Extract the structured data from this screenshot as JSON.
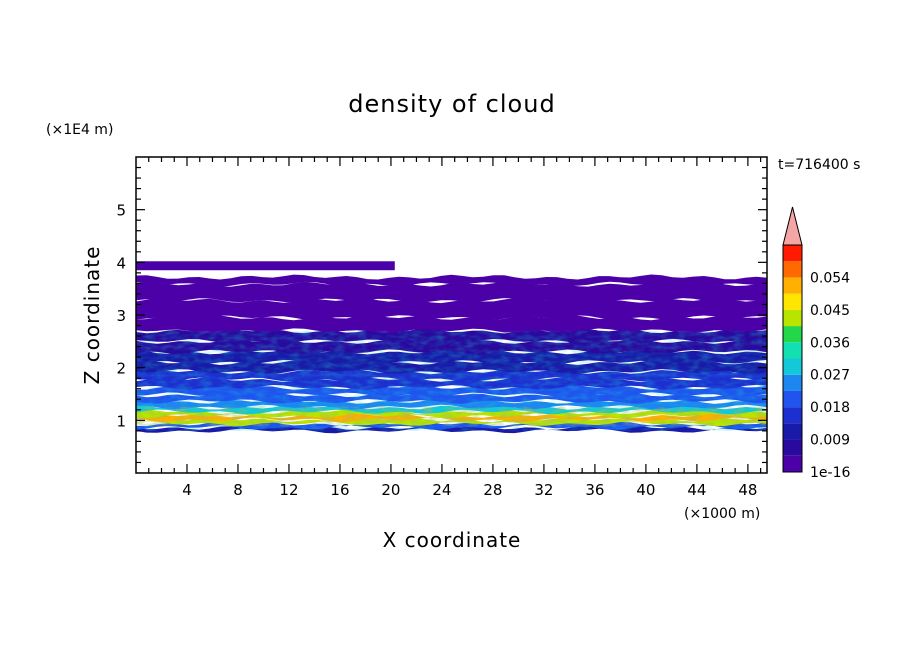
{
  "chart_data": {
    "type": "heatmap",
    "title": "density of cloud",
    "xlabel": "X coordinate",
    "ylabel": "Z coordinate",
    "x_unit": "(×1000 m)",
    "z_unit": "(×1E4 m)",
    "time_label": "t=716400 s",
    "xlim": [
      0,
      49.5
    ],
    "ylim": [
      0,
      6
    ],
    "x_ticks": [
      4,
      8,
      12,
      16,
      20,
      24,
      28,
      32,
      36,
      40,
      44,
      48
    ],
    "y_ticks": [
      1,
      2,
      3,
      4,
      5
    ],
    "grid": false,
    "colorbar": {
      "position": "right",
      "levels": [
        1e-16,
        0.0045,
        0.009,
        0.0135,
        0.018,
        0.0225,
        0.027,
        0.0315,
        0.036,
        0.0405,
        0.045,
        0.0495,
        0.054,
        0.0585
      ],
      "tick_labels": [
        "1e-16",
        "0.009",
        "0.018",
        "0.027",
        "0.036",
        "0.045",
        "0.054"
      ],
      "colors": [
        "#4b00a8",
        "#2a0a9e",
        "#1a1aa8",
        "#1e2fd0",
        "#1f55ee",
        "#1e86f0",
        "#14c8d8",
        "#12e0b0",
        "#22d84a",
        "#b8e400",
        "#ffe500",
        "#ffb000",
        "#ff6a00",
        "#ff1a00"
      ],
      "extend_color": "#f4a6a6"
    },
    "profile": [
      {
        "z": 0.83,
        "value": 0.01
      },
      {
        "z": 0.9,
        "value": 0.02
      },
      {
        "z": 0.97,
        "value": 0.041
      },
      {
        "z": 1.05,
        "value": 0.05
      },
      {
        "z": 1.12,
        "value": 0.042
      },
      {
        "z": 1.2,
        "value": 0.031
      },
      {
        "z": 1.3,
        "value": 0.025
      },
      {
        "z": 1.42,
        "value": 0.02
      },
      {
        "z": 1.55,
        "value": 0.018
      },
      {
        "z": 1.7,
        "value": 0.017
      },
      {
        "z": 1.85,
        "value": 0.015
      },
      {
        "z": 2.0,
        "value": 0.013
      },
      {
        "z": 2.2,
        "value": 0.01
      },
      {
        "z": 2.4,
        "value": 0.008
      },
      {
        "z": 2.6,
        "value": 0.006
      },
      {
        "z": 2.8,
        "value": 0.004
      },
      {
        "z": 3.1,
        "value": 0.002
      },
      {
        "z": 3.45,
        "value": 0.0005
      },
      {
        "z": 3.72,
        "value": 0.0001
      }
    ],
    "cloud_base_z": 0.8,
    "cloud_top_z": 3.72,
    "upper_layer": {
      "z_bottom": 3.85,
      "z_top": 4.02,
      "x_start": 0,
      "x_end": 20.3,
      "value": 0.0001
    }
  }
}
